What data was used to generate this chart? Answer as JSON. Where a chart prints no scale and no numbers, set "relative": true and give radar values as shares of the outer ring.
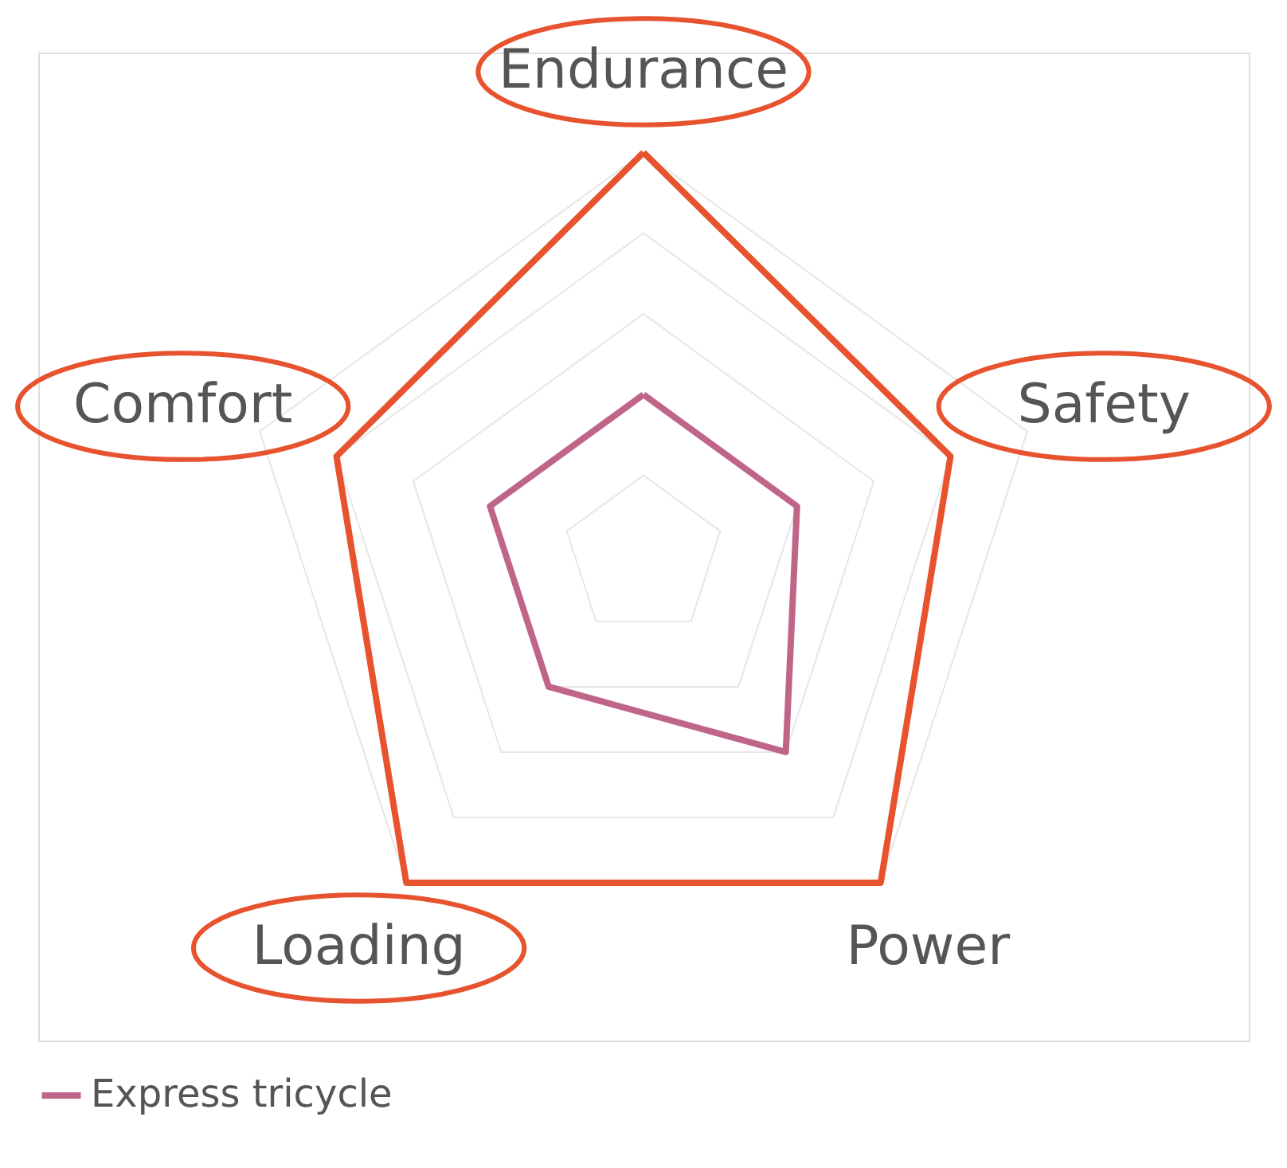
{
  "chart_data": {
    "type": "radar",
    "relative": true,
    "grid": true,
    "legend": "bottom",
    "categories": [
      "Endurance",
      "Safety",
      "Power",
      "Loading",
      "Comfort"
    ],
    "series": [
      {
        "color": "#e8532f",
        "values": [
          1,
          0.8,
          1,
          1,
          0.8
        ]
      },
      {
        "name": "Express tricycle",
        "color": "#c0658a",
        "values": [
          0.4,
          0.4,
          0.6,
          0.4,
          0.4
        ]
      }
    ]
  }
}
